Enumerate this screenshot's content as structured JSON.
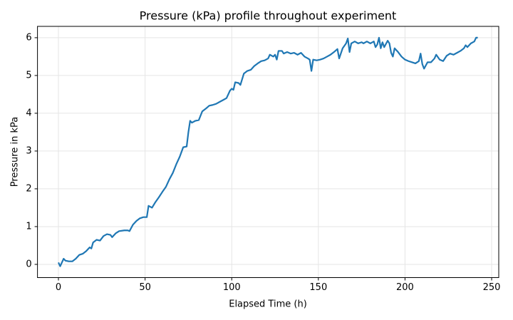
{
  "chart_data": {
    "type": "line",
    "title": "Pressure (kPa) profile throughout experiment",
    "x_label": "Elapsed Time (h)",
    "y_label": "Pressure in kPa",
    "xlim": [
      -12.1,
      254.1
    ],
    "ylim": [
      -0.35,
      6.3
    ],
    "xticks": [
      0,
      50,
      100,
      150,
      200,
      250
    ],
    "yticks": [
      0,
      1,
      2,
      3,
      4,
      5,
      6
    ],
    "grid": true,
    "series": [
      {
        "name": "Pressure",
        "color": "#1f77b4",
        "x": [
          0,
          1,
          2,
          3,
          4,
          6,
          8,
          10,
          12,
          14,
          16,
          18,
          19,
          20,
          22,
          24,
          26,
          28,
          30,
          31,
          33,
          35,
          38,
          40,
          41,
          43,
          45,
          47,
          49,
          51,
          52,
          54,
          56,
          58,
          60,
          62,
          64,
          66,
          68,
          70,
          72,
          74,
          75,
          76,
          77,
          79,
          81,
          83,
          85,
          87,
          89,
          91,
          93,
          95,
          97,
          99,
          100,
          101,
          102,
          104,
          105,
          107,
          109,
          111,
          113,
          115,
          117,
          119,
          121,
          122,
          124,
          125,
          126,
          127,
          129,
          130,
          132,
          134,
          136,
          138,
          140,
          142,
          144,
          145,
          146,
          147,
          149,
          151,
          153,
          155,
          157,
          159,
          161,
          162,
          164,
          166,
          167,
          168,
          169,
          171,
          173,
          175,
          176,
          178,
          180,
          182,
          183,
          184,
          185,
          186,
          187,
          188,
          190,
          191,
          192,
          193,
          194,
          196,
          198,
          200,
          202,
          204,
          206,
          208,
          209,
          210,
          211,
          213,
          215,
          217,
          218,
          220,
          222,
          224,
          226,
          228,
          230,
          232,
          234,
          235,
          236,
          238,
          240,
          241,
          242
        ],
        "values": [
          0.05,
          -0.05,
          0.05,
          0.15,
          0.1,
          0.08,
          0.08,
          0.15,
          0.25,
          0.28,
          0.35,
          0.45,
          0.42,
          0.58,
          0.65,
          0.63,
          0.75,
          0.8,
          0.78,
          0.72,
          0.82,
          0.88,
          0.9,
          0.9,
          0.88,
          1.05,
          1.15,
          1.22,
          1.25,
          1.25,
          1.55,
          1.5,
          1.65,
          1.78,
          1.92,
          2.05,
          2.25,
          2.42,
          2.65,
          2.85,
          3.1,
          3.12,
          3.5,
          3.8,
          3.75,
          3.8,
          3.82,
          4.05,
          4.12,
          4.2,
          4.22,
          4.25,
          4.3,
          4.35,
          4.4,
          4.6,
          4.65,
          4.62,
          4.82,
          4.8,
          4.75,
          5.05,
          5.12,
          5.15,
          5.25,
          5.32,
          5.38,
          5.4,
          5.45,
          5.55,
          5.5,
          5.55,
          5.42,
          5.65,
          5.65,
          5.58,
          5.62,
          5.58,
          5.6,
          5.55,
          5.6,
          5.5,
          5.45,
          5.42,
          5.12,
          5.42,
          5.4,
          5.42,
          5.45,
          5.5,
          5.55,
          5.62,
          5.7,
          5.45,
          5.72,
          5.85,
          5.98,
          5.62,
          5.85,
          5.9,
          5.85,
          5.88,
          5.85,
          5.9,
          5.85,
          5.9,
          5.75,
          5.82,
          6.0,
          5.72,
          5.88,
          5.75,
          5.92,
          5.85,
          5.6,
          5.5,
          5.72,
          5.62,
          5.5,
          5.42,
          5.38,
          5.35,
          5.32,
          5.38,
          5.58,
          5.3,
          5.18,
          5.35,
          5.35,
          5.45,
          5.55,
          5.42,
          5.38,
          5.52,
          5.58,
          5.55,
          5.6,
          5.65,
          5.72,
          5.8,
          5.75,
          5.85,
          5.9,
          6.0,
          6.0
        ]
      }
    ]
  }
}
